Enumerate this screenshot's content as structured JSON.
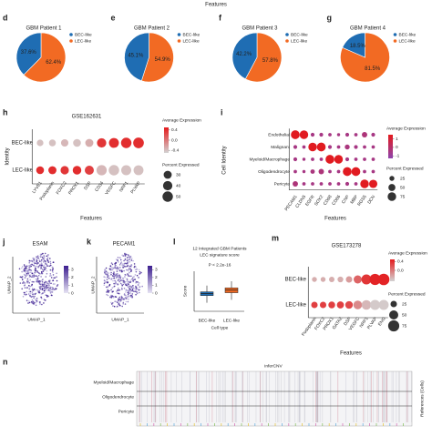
{
  "header": {
    "title": "Features"
  },
  "pies": {
    "legend": [
      "BEC-like",
      "LEC-like"
    ],
    "colors": [
      "#1f6db3",
      "#f26a23"
    ],
    "panels": [
      {
        "letter": "d",
        "title": "GBM Patient 1",
        "values": [
          37.6,
          62.4
        ],
        "value_labels": [
          "37.6%",
          "62.4%"
        ]
      },
      {
        "letter": "e",
        "title": "GBM Patient 2",
        "values": [
          45.1,
          54.9
        ],
        "value_labels": [
          "45.1%",
          "54.9%"
        ]
      },
      {
        "letter": "f",
        "title": "GBM Patient 3",
        "values": [
          42.2,
          57.8
        ],
        "value_labels": [
          "42.2%",
          "57.8%"
        ]
      },
      {
        "letter": "g",
        "title": "GBM Patient 4",
        "values": [
          18.5,
          81.5
        ],
        "value_labels": [
          "18.5%",
          "81.5%"
        ]
      }
    ]
  },
  "dotplots": [
    {
      "letter": "h",
      "title": "GSE162631",
      "y_label": "Identity",
      "x_label": "Features",
      "groups": [
        "BEC-like",
        "LEC-like"
      ],
      "features": [
        "LYVE1",
        "Podoplanin",
        "FOXC2",
        "PROX1",
        "DSP",
        "CD34",
        "VEGFC",
        "NRP1",
        "PLVAP"
      ],
      "avg": [
        [
          -0.4,
          -0.4,
          -0.35,
          -0.4,
          -0.3,
          0.35,
          0.4,
          0.4,
          0.4
        ],
        [
          0.4,
          0.4,
          0.35,
          0.4,
          0.3,
          -0.35,
          -0.4,
          -0.4,
          -0.4
        ]
      ],
      "pct": [
        [
          20,
          22,
          25,
          28,
          30,
          40,
          45,
          50,
          52
        ],
        [
          28,
          30,
          32,
          34,
          38,
          48,
          50,
          46,
          45
        ]
      ],
      "color_title": "Average Expression",
      "colors": [
        "#d3d3d3",
        "#e41a1c"
      ],
      "color_lim": [
        -0.5,
        0.5
      ],
      "color_ticks": [
        0.4,
        {
          "value": 0,
          "label": "0.0"
        },
        -0.4
      ],
      "size_title": "Percent Expressed",
      "size_lim": [
        0,
        55
      ],
      "size_ticks": [
        30,
        40,
        50
      ]
    },
    {
      "letter": "i",
      "y_label": "Cell Identity",
      "x_label": "Features",
      "groups": [
        "Endothelial",
        "Malignant",
        "Myeloid/Macrophage",
        "Oligodendrocyte",
        "Pericyte"
      ],
      "features": [
        "PECAM1",
        "CLDN5",
        "EGFR",
        "SOX2",
        "CD68",
        "CD86",
        "CNP",
        "MBP",
        "RGS5",
        "DCN"
      ],
      "avg": [
        [
          1.4,
          1.4,
          -0.5,
          -0.5,
          -0.5,
          -0.5,
          -0.5,
          -0.5,
          -0.3,
          -0.5
        ],
        [
          -0.5,
          -0.5,
          1.4,
          1.4,
          -0.5,
          -0.5,
          -0.4,
          -0.5,
          -0.5,
          -0.5
        ],
        [
          -0.5,
          -0.5,
          -0.5,
          -0.5,
          1.4,
          1.4,
          -0.5,
          -0.5,
          -0.5,
          -0.5
        ],
        [
          -0.5,
          -0.5,
          -0.4,
          -0.3,
          -0.5,
          -0.5,
          1.4,
          1.4,
          -0.5,
          -0.5
        ],
        [
          -0.3,
          -0.5,
          -0.5,
          -0.5,
          -0.5,
          -0.5,
          -0.5,
          -0.5,
          1.4,
          1.4
        ]
      ],
      "pct": [
        [
          80,
          75,
          15,
          15,
          12,
          10,
          15,
          12,
          30,
          15
        ],
        [
          15,
          12,
          75,
          80,
          15,
          12,
          25,
          15,
          12,
          12
        ],
        [
          15,
          10,
          12,
          12,
          80,
          75,
          15,
          12,
          12,
          12
        ],
        [
          12,
          10,
          20,
          30,
          12,
          12,
          80,
          80,
          12,
          12
        ],
        [
          30,
          12,
          12,
          12,
          12,
          12,
          15,
          12,
          75,
          70
        ]
      ],
      "color_title": "Average Expression",
      "colors": [
        "#8e44ad",
        "#e41a1c"
      ],
      "color_lim": [
        -1.3,
        1.5
      ],
      "color_ticks": [
        1,
        0,
        -1
      ],
      "size_title": "Percent Expressed",
      "size_lim": [
        0,
        85
      ],
      "size_ticks": [
        25,
        50,
        75
      ]
    },
    {
      "letter": "m",
      "title": "GSE173278",
      "x_label": "Features",
      "groups": [
        "BEC-like",
        "LEC-like"
      ],
      "features": [
        "Podoplanin",
        "FOXC2",
        "PROX1",
        "GATA2",
        "DSP",
        "VEGFC",
        "NRP1",
        "PLVAP",
        "ENG"
      ],
      "avg": [
        [
          -0.3,
          -0.3,
          -0.3,
          -0.3,
          -0.2,
          0.1,
          0.35,
          0.45,
          0.45
        ],
        [
          0.3,
          0.3,
          0.3,
          0.3,
          0.25,
          -0.1,
          -0.35,
          -0.45,
          -0.45
        ]
      ],
      "pct": [
        [
          15,
          15,
          18,
          20,
          25,
          40,
          60,
          75,
          80
        ],
        [
          25,
          25,
          28,
          30,
          35,
          45,
          55,
          60,
          60
        ]
      ],
      "color_title": "Average Expression",
      "colors": [
        "#d3d3d3",
        "#e41a1c"
      ],
      "color_lim": [
        -0.5,
        0.5
      ],
      "color_ticks": [
        0.4,
        {
          "value": 0,
          "label": "0.0"
        }
      ],
      "size_title": "Percent Expressed",
      "size_lim": [
        0,
        85
      ],
      "size_ticks": [
        25,
        50,
        75
      ]
    }
  ],
  "umaps": [
    {
      "letter": "j",
      "title": "ESAM",
      "x_label": "UMAP_1",
      "y_label": "UMAP_2",
      "color_lim": [
        0,
        3.5
      ],
      "color_ticks": [
        0,
        1,
        2,
        3
      ]
    },
    {
      "letter": "k",
      "title": "PECAM1",
      "x_label": "UMAP_1",
      "y_label": "UMAP_2",
      "color_lim": [
        0,
        3.5
      ],
      "color_ticks": [
        0,
        1,
        2,
        3
      ]
    }
  ],
  "boxplot": {
    "letter": "l",
    "title": [
      "12 Integrated GBM Patients",
      "LEC signature score"
    ],
    "annotation": "P < 2.2e-16",
    "y_label": "Score",
    "x_label": "Cell type",
    "categories": [
      "BEC-like",
      "LEC-like"
    ],
    "colors": [
      "#1f6db3",
      "#f26a23"
    ],
    "ylim": [
      -0.6,
      0.8
    ],
    "boxes": [
      {
        "low": -0.3,
        "q1": -0.05,
        "median": 0.02,
        "q3": 0.08,
        "high": 0.3
      },
      {
        "low": -0.2,
        "q1": 0.05,
        "median": 0.14,
        "q3": 0.22,
        "high": 0.45
      }
    ]
  },
  "heatmap": {
    "letter": "n",
    "title": "inferCNV",
    "rows": [
      "Myeloid/Macrophage",
      "Oligodendrocyte",
      "Pericyte"
    ],
    "side_label": "References (Cells)"
  }
}
